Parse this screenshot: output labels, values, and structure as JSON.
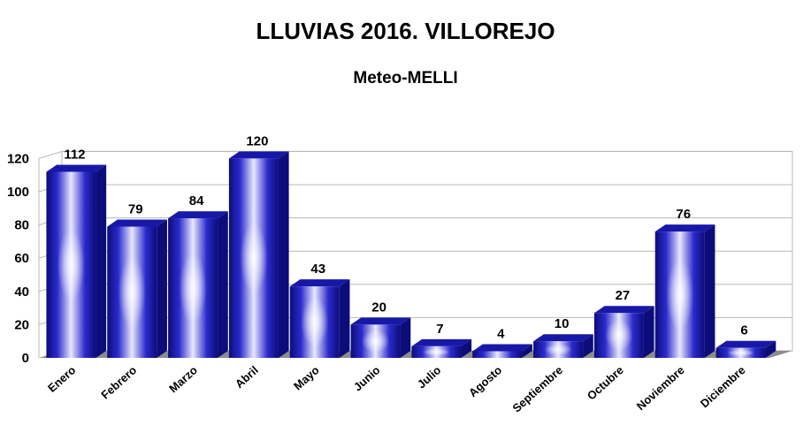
{
  "chart_data": {
    "type": "bar",
    "title": "LLUVIAS 2016. VILLOREJO",
    "subtitle": "Meteo-MELLI",
    "xlabel": "",
    "ylabel": "",
    "ylim": [
      0,
      120
    ],
    "yticks": [
      0,
      20,
      40,
      60,
      80,
      100,
      120
    ],
    "grid": true,
    "legend": "none",
    "categories": [
      "Enero",
      "Febrero",
      "Marzo",
      "Abril",
      "Mayo",
      "Junio",
      "Julio",
      "Agosto",
      "Septiembre",
      "Octubre",
      "Noviembre",
      "Diciembre"
    ],
    "values": [
      112,
      79,
      84,
      120,
      43,
      20,
      7,
      4,
      10,
      27,
      76,
      6
    ],
    "colors": {
      "bar_dark": "#0c0c7a",
      "bar_mid": "#3030d8",
      "bar_light": "#e8e8ff",
      "grid": "#b8b8b8",
      "floor": "#8c8c8c"
    }
  }
}
